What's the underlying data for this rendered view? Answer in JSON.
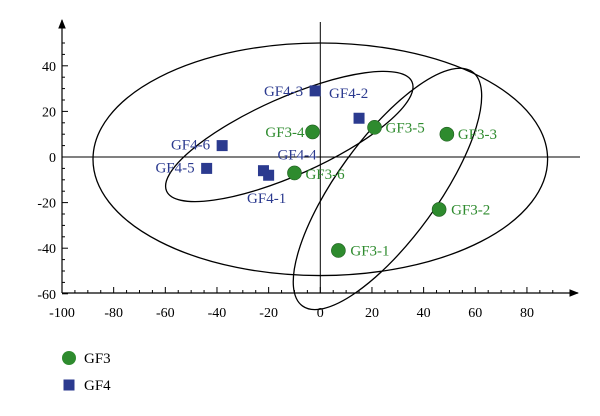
{
  "chart_data": {
    "type": "scatter",
    "title": "",
    "xlabel": "",
    "ylabel": "",
    "xlim": [
      -100,
      100
    ],
    "ylim": [
      -60,
      55
    ],
    "x_ticks": [
      -100,
      -80,
      -60,
      -40,
      -20,
      0,
      20,
      40,
      60,
      80
    ],
    "y_ticks": [
      -60,
      -40,
      -20,
      0,
      20,
      40
    ],
    "grid": false,
    "legend": "bottom-left",
    "series": [
      {
        "name": "GF3",
        "marker": "circle",
        "color": "#2e8b2e",
        "points": [
          {
            "label": "GF3-1",
            "x": 7,
            "y": -41
          },
          {
            "label": "GF3-2",
            "x": 46,
            "y": -23
          },
          {
            "label": "GF3-3",
            "x": 49,
            "y": 10
          },
          {
            "label": "GF3-4",
            "x": -3,
            "y": 11
          },
          {
            "label": "GF3-5",
            "x": 21,
            "y": 13
          },
          {
            "label": "GF3-6",
            "x": -10,
            "y": -7
          }
        ]
      },
      {
        "name": "GF4",
        "marker": "square",
        "color": "#2b3a8f",
        "points": [
          {
            "label": "GF4-1",
            "x": -20,
            "y": -8
          },
          {
            "label": "GF4-2",
            "x": 15,
            "y": 17
          },
          {
            "label": "GF4-3",
            "x": -2,
            "y": 29
          },
          {
            "label": "GF4-4",
            "x": -22,
            "y": -6
          },
          {
            "label": "GF4-5",
            "x": -44,
            "y": -5
          },
          {
            "label": "GF4-6",
            "x": -38,
            "y": 5
          }
        ]
      }
    ],
    "ellipses": [
      {
        "cx": 0,
        "cy": -1,
        "rx": 88,
        "ry": 51,
        "angle": 0
      },
      {
        "cx": -12,
        "cy": 9,
        "rx": 52,
        "ry": 17,
        "angle": 24
      },
      {
        "cx": 26,
        "cy": -14,
        "rx": 56,
        "ry": 22,
        "angle": 54
      }
    ]
  }
}
